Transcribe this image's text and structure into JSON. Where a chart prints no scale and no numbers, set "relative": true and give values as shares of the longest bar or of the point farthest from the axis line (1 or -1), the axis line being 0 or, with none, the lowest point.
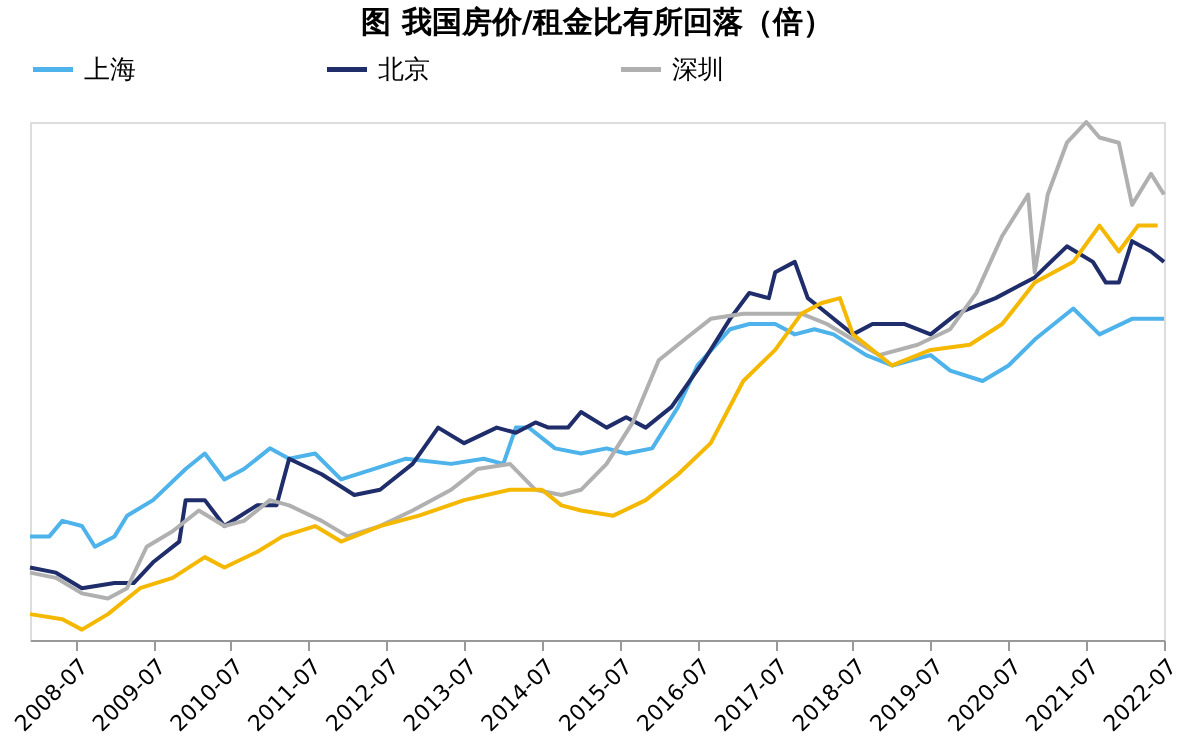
{
  "chart_data": {
    "type": "line",
    "title": "图  我国房价/租金比有所回落（倍）",
    "relative": true,
    "grid": false,
    "legend": "top",
    "line_style": "solid",
    "marker": "none",
    "xlim": [
      "2007-12",
      "2022-07"
    ],
    "xticks": [
      "2008-07",
      "2009-07",
      "2010-07",
      "2011-07",
      "2012-07",
      "2013-07",
      "2014-07",
      "2015-07",
      "2016-07",
      "2017-07",
      "2018-07",
      "2019-07",
      "2020-07",
      "2021-07",
      "2022-07"
    ],
    "series": [
      {
        "name": "上海",
        "color": "#4db3ea",
        "x": [
          "2007-12",
          "2008-03",
          "2008-05",
          "2008-08",
          "2008-10",
          "2009-01",
          "2009-03",
          "2009-07",
          "2009-12",
          "2010-03",
          "2010-06",
          "2010-09",
          "2011-01",
          "2011-04",
          "2011-08",
          "2011-12",
          "2012-05",
          "2012-10",
          "2013-05",
          "2013-10",
          "2014-01",
          "2014-03",
          "2014-05",
          "2014-09",
          "2015-01",
          "2015-05",
          "2015-08",
          "2015-12",
          "2016-04",
          "2016-07",
          "2016-12",
          "2017-03",
          "2017-07",
          "2017-10",
          "2018-01",
          "2018-04",
          "2018-09",
          "2019-01",
          "2019-07",
          "2019-10",
          "2020-03",
          "2020-07",
          "2020-11",
          "2021-05",
          "2021-09",
          "2022-02",
          "2022-07"
        ],
        "values": [
          0.2,
          0.2,
          0.23,
          0.22,
          0.18,
          0.2,
          0.24,
          0.27,
          0.33,
          0.36,
          0.31,
          0.33,
          0.37,
          0.35,
          0.36,
          0.31,
          0.33,
          0.35,
          0.34,
          0.35,
          0.34,
          0.41,
          0.41,
          0.37,
          0.36,
          0.37,
          0.36,
          0.37,
          0.45,
          0.53,
          0.6,
          0.61,
          0.61,
          0.59,
          0.6,
          0.59,
          0.55,
          0.53,
          0.55,
          0.52,
          0.5,
          0.53,
          0.58,
          0.64,
          0.59,
          0.62,
          0.62
        ]
      },
      {
        "name": "北京",
        "color": "#1f2d6b",
        "x": [
          "2007-12",
          "2008-04",
          "2008-08",
          "2009-01",
          "2009-04",
          "2009-07",
          "2009-11",
          "2009-12",
          "2010-03",
          "2010-06",
          "2010-11",
          "2011-02",
          "2011-04",
          "2011-09",
          "2012-02",
          "2012-06",
          "2012-11",
          "2013-03",
          "2013-07",
          "2013-12",
          "2014-03",
          "2014-06",
          "2014-08",
          "2014-11",
          "2015-01",
          "2015-05",
          "2015-08",
          "2015-11",
          "2016-03",
          "2016-08",
          "2016-12",
          "2017-03",
          "2017-06",
          "2017-07",
          "2017-10",
          "2017-12",
          "2018-02",
          "2018-07",
          "2018-10",
          "2019-03",
          "2019-07",
          "2019-11",
          "2020-05",
          "2020-11",
          "2021-04",
          "2021-08",
          "2021-10",
          "2021-12",
          "2022-02",
          "2022-05",
          "2022-07"
        ],
        "values": [
          0.14,
          0.13,
          0.1,
          0.11,
          0.11,
          0.15,
          0.19,
          0.27,
          0.27,
          0.22,
          0.26,
          0.26,
          0.35,
          0.32,
          0.28,
          0.29,
          0.34,
          0.41,
          0.38,
          0.41,
          0.4,
          0.42,
          0.41,
          0.41,
          0.44,
          0.41,
          0.43,
          0.41,
          0.45,
          0.54,
          0.62,
          0.67,
          0.66,
          0.71,
          0.73,
          0.66,
          0.64,
          0.59,
          0.61,
          0.61,
          0.59,
          0.63,
          0.66,
          0.7,
          0.76,
          0.73,
          0.69,
          0.69,
          0.77,
          0.75,
          0.73
        ]
      },
      {
        "name": "深圳",
        "color": "#b0b0b0",
        "x": [
          "2007-12",
          "2008-04",
          "2008-08",
          "2008-12",
          "2009-03",
          "2009-06",
          "2009-10",
          "2010-02",
          "2010-06",
          "2010-09",
          "2011-01",
          "2011-04",
          "2011-09",
          "2012-01",
          "2012-06",
          "2012-11",
          "2013-05",
          "2013-09",
          "2014-02",
          "2014-06",
          "2014-10",
          "2015-01",
          "2015-05",
          "2015-09",
          "2016-01",
          "2016-05",
          "2016-09",
          "2017-02",
          "2017-07",
          "2017-11",
          "2018-03",
          "2018-07",
          "2018-11",
          "2019-05",
          "2019-10",
          "2020-02",
          "2020-06",
          "2020-10",
          "2020-11",
          "2021-01",
          "2021-04",
          "2021-07",
          "2021-09",
          "2021-12",
          "2022-02",
          "2022-05",
          "2022-07"
        ],
        "values": [
          0.13,
          0.12,
          0.09,
          0.08,
          0.1,
          0.18,
          0.21,
          0.25,
          0.22,
          0.23,
          0.27,
          0.26,
          0.23,
          0.2,
          0.22,
          0.25,
          0.29,
          0.33,
          0.34,
          0.29,
          0.28,
          0.29,
          0.34,
          0.42,
          0.54,
          0.58,
          0.62,
          0.63,
          0.63,
          0.63,
          0.61,
          0.58,
          0.55,
          0.57,
          0.6,
          0.67,
          0.78,
          0.86,
          0.71,
          0.86,
          0.96,
          1.0,
          0.97,
          0.96,
          0.84,
          0.9,
          0.86
        ]
      },
      {
        "color": "#f5b800",
        "x": [
          "2007-12",
          "2008-05",
          "2008-08",
          "2008-12",
          "2009-05",
          "2009-10",
          "2010-03",
          "2010-06",
          "2010-11",
          "2011-03",
          "2011-08",
          "2011-12",
          "2012-06",
          "2012-12",
          "2013-07",
          "2014-02",
          "2014-07",
          "2014-10",
          "2015-01",
          "2015-06",
          "2015-11",
          "2016-04",
          "2016-09",
          "2017-02",
          "2017-07",
          "2017-11",
          "2018-02",
          "2018-05",
          "2018-07",
          "2019-01",
          "2019-07",
          "2020-01",
          "2020-06",
          "2020-11",
          "2021-05",
          "2021-09",
          "2021-12",
          "2022-03",
          "2022-06"
        ],
        "values": [
          0.05,
          0.04,
          0.02,
          0.05,
          0.1,
          0.12,
          0.16,
          0.14,
          0.17,
          0.2,
          0.22,
          0.19,
          0.22,
          0.24,
          0.27,
          0.29,
          0.29,
          0.26,
          0.25,
          0.24,
          0.27,
          0.32,
          0.38,
          0.5,
          0.56,
          0.63,
          0.65,
          0.66,
          0.59,
          0.53,
          0.56,
          0.57,
          0.61,
          0.69,
          0.73,
          0.8,
          0.75,
          0.8,
          0.8
        ]
      }
    ]
  }
}
